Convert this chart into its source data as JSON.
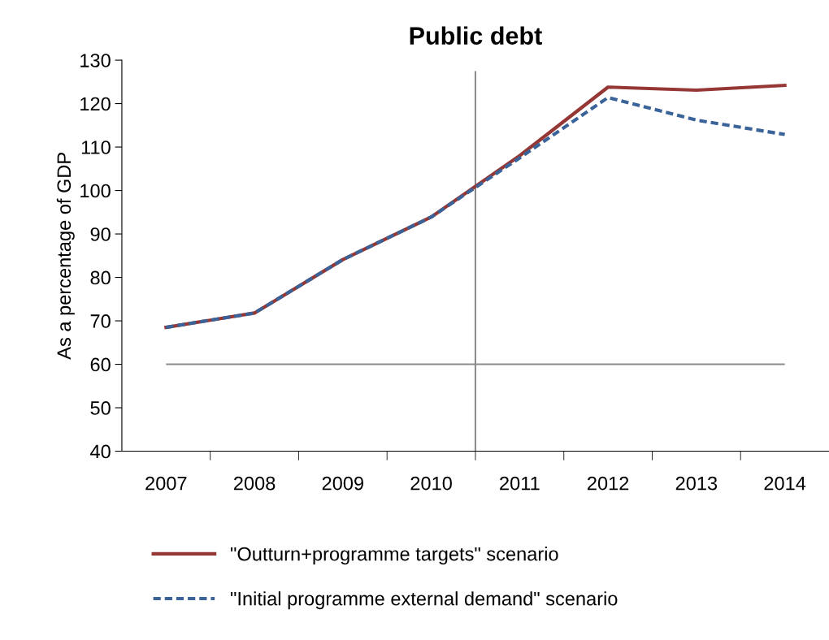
{
  "chart_data": {
    "type": "line",
    "title": "Public debt",
    "ylabel": "As a percentage of GDP",
    "categories": [
      "2007",
      "2008",
      "2009",
      "2010",
      "2011",
      "2012",
      "2013",
      "2014"
    ],
    "series": [
      {
        "name": "\"Outturn+programme targets\" scenario",
        "color": "#953735",
        "line_style": "solid",
        "values": [
          68.5,
          71.8,
          84.1,
          93.9,
          108,
          123.8,
          123.1,
          124.2
        ]
      },
      {
        "name": "\"Initial programme external demand\" scenario",
        "color": "#3a6399",
        "line_style": "dashed",
        "values": [
          68.5,
          71.8,
          84.1,
          93.9,
          107.5,
          121.4,
          116.2,
          112.9
        ]
      }
    ],
    "ylim": [
      40,
      130
    ],
    "yticks": [
      40,
      50,
      60,
      70,
      80,
      90,
      100,
      110,
      120,
      130
    ],
    "ref_lines": [
      {
        "axis": "y",
        "value": 60,
        "color": "#8c8c8c"
      }
    ],
    "grid": false,
    "legend": "bottom",
    "marker": "none"
  }
}
